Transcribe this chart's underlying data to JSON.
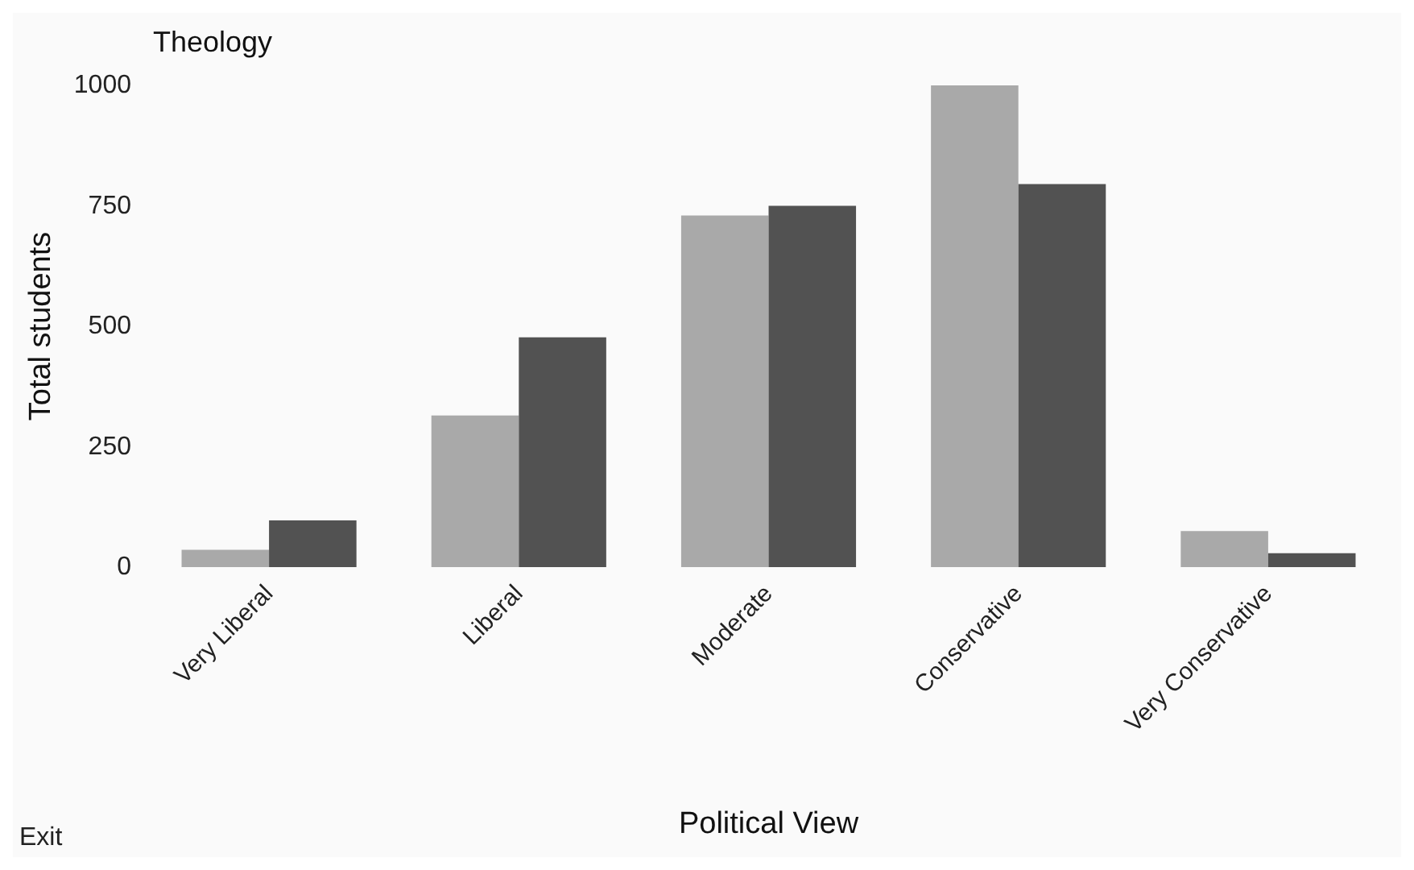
{
  "chart_data": {
    "type": "bar",
    "title": "Theology",
    "xlabel": "Political View",
    "ylabel": "Total students",
    "categories": [
      "Very Liberal",
      "Liberal",
      "Moderate",
      "Conservative",
      "Very Conservative"
    ],
    "series": [
      {
        "color": "#a9a9a9",
        "values": [
          36,
          315,
          730,
          1000,
          75
        ]
      },
      {
        "color": "#525252",
        "values": [
          97,
          477,
          750,
          795,
          29
        ]
      }
    ],
    "ylim": [
      0,
      1000
    ],
    "yticks": [
      0,
      250,
      500,
      750,
      1000
    ],
    "grid": false,
    "annotations": [
      "Exit"
    ]
  }
}
